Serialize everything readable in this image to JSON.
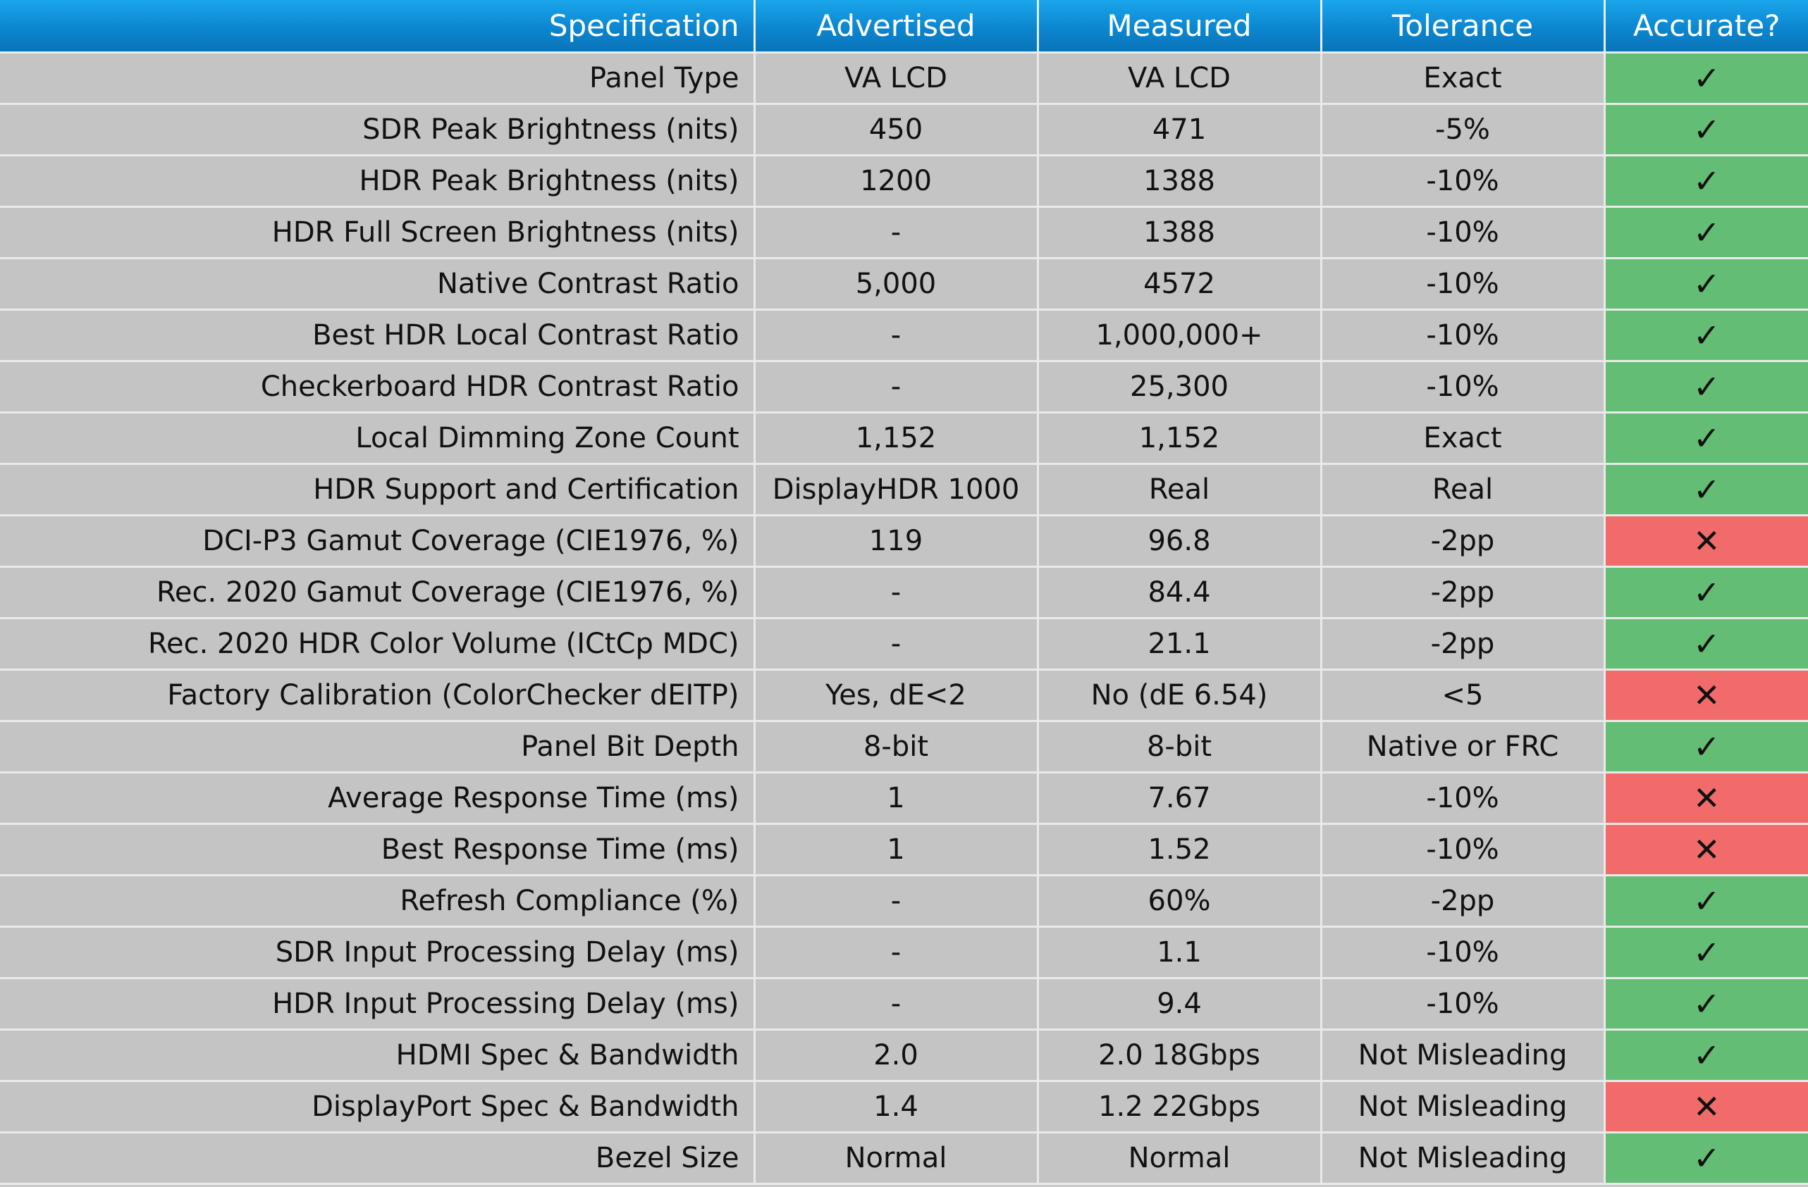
{
  "colors": {
    "header_bg": "#0c86cf",
    "header_text": "#ffffff",
    "cell_bg": "#c4c4c4",
    "pass_bg": "#64bd74",
    "fail_bg": "#f26b6b"
  },
  "icons": {
    "pass": "check-icon",
    "fail": "cross-icon"
  },
  "table": {
    "headers": [
      "Specification",
      "Advertised",
      "Measured",
      "Tolerance",
      "Accurate?"
    ],
    "pass_symbol": "✓",
    "fail_symbol": "✕",
    "rows": [
      {
        "spec": "Panel Type",
        "advertised": "VA LCD",
        "measured": "VA LCD",
        "tolerance": "Exact",
        "accurate": true
      },
      {
        "spec": "SDR Peak Brightness (nits)",
        "advertised": "450",
        "measured": "471",
        "tolerance": "-5%",
        "accurate": true
      },
      {
        "spec": "HDR Peak Brightness (nits)",
        "advertised": "1200",
        "measured": "1388",
        "tolerance": "-10%",
        "accurate": true
      },
      {
        "spec": "HDR Full Screen Brightness (nits)",
        "advertised": "-",
        "measured": "1388",
        "tolerance": "-10%",
        "accurate": true
      },
      {
        "spec": "Native Contrast Ratio",
        "advertised": "5,000",
        "measured": "4572",
        "tolerance": "-10%",
        "accurate": true
      },
      {
        "spec": "Best HDR Local Contrast Ratio",
        "advertised": "-",
        "measured": "1,000,000+",
        "tolerance": "-10%",
        "accurate": true
      },
      {
        "spec": "Checkerboard HDR Contrast Ratio",
        "advertised": "-",
        "measured": "25,300",
        "tolerance": "-10%",
        "accurate": true
      },
      {
        "spec": "Local Dimming Zone Count",
        "advertised": "1,152",
        "measured": "1,152",
        "tolerance": "Exact",
        "accurate": true
      },
      {
        "spec": "HDR Support and Certification",
        "advertised": "DisplayHDR 1000",
        "measured": "Real",
        "tolerance": "Real",
        "accurate": true
      },
      {
        "spec": "DCI-P3 Gamut Coverage (CIE1976, %)",
        "advertised": "119",
        "measured": "96.8",
        "tolerance": "-2pp",
        "accurate": false
      },
      {
        "spec": "Rec. 2020 Gamut Coverage (CIE1976, %)",
        "advertised": "-",
        "measured": "84.4",
        "tolerance": "-2pp",
        "accurate": true
      },
      {
        "spec": "Rec. 2020 HDR Color Volume (ICtCp MDC)",
        "advertised": "-",
        "measured": "21.1",
        "tolerance": "-2pp",
        "accurate": true
      },
      {
        "spec": "Factory Calibration (ColorChecker dEITP)",
        "advertised": "Yes, dE<2",
        "measured": "No (dE 6.54)",
        "tolerance": "<5",
        "accurate": false
      },
      {
        "spec": "Panel Bit Depth",
        "advertised": "8-bit",
        "measured": "8-bit",
        "tolerance": "Native or FRC",
        "accurate": true
      },
      {
        "spec": "Average Response Time (ms)",
        "advertised": "1",
        "measured": "7.67",
        "tolerance": "-10%",
        "accurate": false
      },
      {
        "spec": "Best Response Time (ms)",
        "advertised": "1",
        "measured": "1.52",
        "tolerance": "-10%",
        "accurate": false
      },
      {
        "spec": "Refresh Compliance (%)",
        "advertised": "-",
        "measured": "60%",
        "tolerance": "-2pp",
        "accurate": true
      },
      {
        "spec": "SDR Input Processing Delay (ms)",
        "advertised": "-",
        "measured": "1.1",
        "tolerance": "-10%",
        "accurate": true
      },
      {
        "spec": "HDR Input Processing Delay (ms)",
        "advertised": "-",
        "measured": "9.4",
        "tolerance": "-10%",
        "accurate": true
      },
      {
        "spec": "HDMI Spec & Bandwidth",
        "advertised": "2.0",
        "measured": "2.0 18Gbps",
        "tolerance": "Not Misleading",
        "accurate": true
      },
      {
        "spec": "DisplayPort Spec & Bandwidth",
        "advertised": "1.4",
        "measured": "1.2 22Gbps",
        "tolerance": "Not Misleading",
        "accurate": false
      },
      {
        "spec": "Bezel Size",
        "advertised": "Normal",
        "measured": "Normal",
        "tolerance": "Not Misleading",
        "accurate": true
      }
    ]
  }
}
